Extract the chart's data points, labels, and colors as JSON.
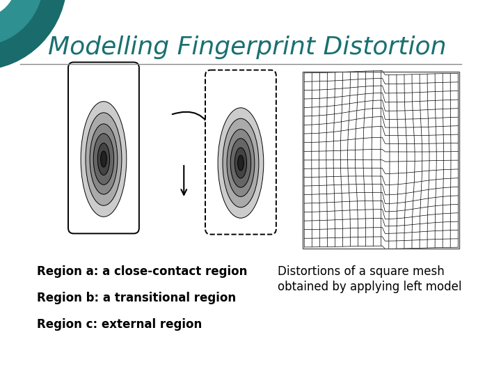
{
  "title": "Modelling Fingerprint Distortion",
  "title_color": "#1A7070",
  "title_fontsize": 26,
  "bg_color": "#FFFFFF",
  "text_left": [
    "Region a: a close-contact region",
    "Region b: a transitional region",
    "Region c: external region"
  ],
  "text_right": [
    "Distortions of a square mesh",
    "obtained by applying left model"
  ],
  "text_fontsize": 12,
  "circle_color_outer": "#1A6B6B",
  "circle_color_inner": "#2E9090"
}
